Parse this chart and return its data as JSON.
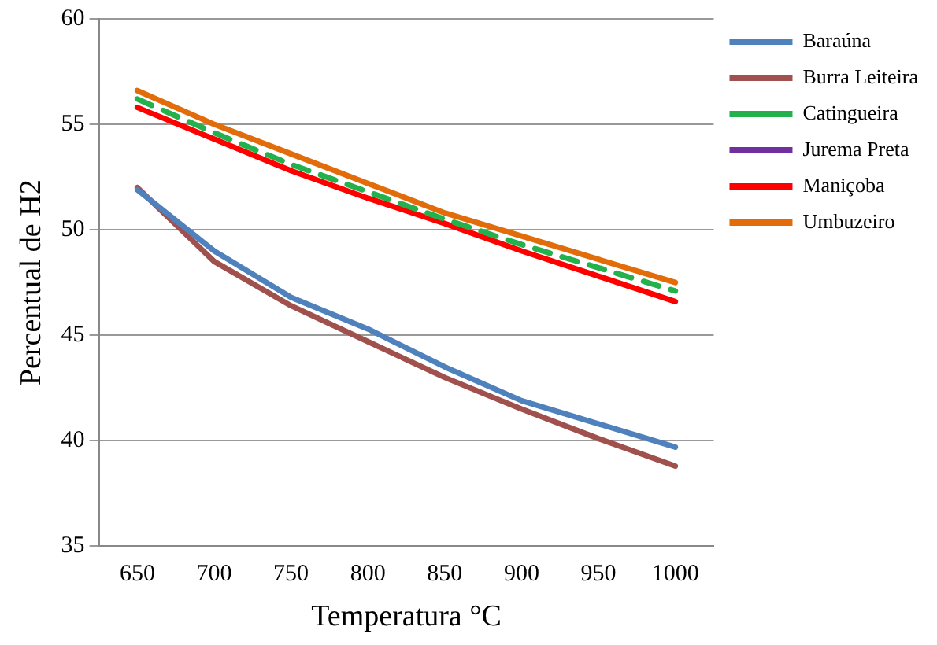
{
  "chart_data": {
    "type": "line",
    "xlabel": "Temperatura °C",
    "ylabel": "Percentual de H2",
    "categories": [
      "650",
      "700",
      "750",
      "800",
      "850",
      "900",
      "950",
      "1000"
    ],
    "ylim": [
      35,
      60
    ],
    "yticks": [
      35,
      40,
      45,
      50,
      55,
      60
    ],
    "grid": "y",
    "legend": "right",
    "marker": "none",
    "series": [
      {
        "name": "Baraúna",
        "color": "#4f81bd",
        "values": [
          51.9,
          49.0,
          46.8,
          45.3,
          43.5,
          41.9,
          40.8,
          39.7
        ]
      },
      {
        "name": "Burra Leiteira",
        "color": "#a0504d",
        "values": [
          52.0,
          48.5,
          46.4,
          44.7,
          43.0,
          41.5,
          40.1,
          38.8
        ]
      },
      {
        "name": "Catingueira",
        "color": "#22b14c",
        "line_style": "dashed",
        "values": [
          56.2,
          54.6,
          53.1,
          51.8,
          50.5,
          49.3,
          48.2,
          47.1
        ]
      },
      {
        "name": "Jurema Preta",
        "color": "#7030a0",
        "values": [
          null,
          null,
          null,
          null,
          null,
          null,
          null,
          null
        ]
      },
      {
        "name": "Maniçoba",
        "color": "#ff0000",
        "values": [
          55.8,
          54.3,
          52.8,
          51.5,
          50.3,
          49.0,
          47.8,
          46.6
        ]
      },
      {
        "name": "Umbuzeiro",
        "color": "#e36c0a",
        "values": [
          56.6,
          55.0,
          53.6,
          52.2,
          50.8,
          49.7,
          48.6,
          47.5
        ]
      }
    ]
  }
}
